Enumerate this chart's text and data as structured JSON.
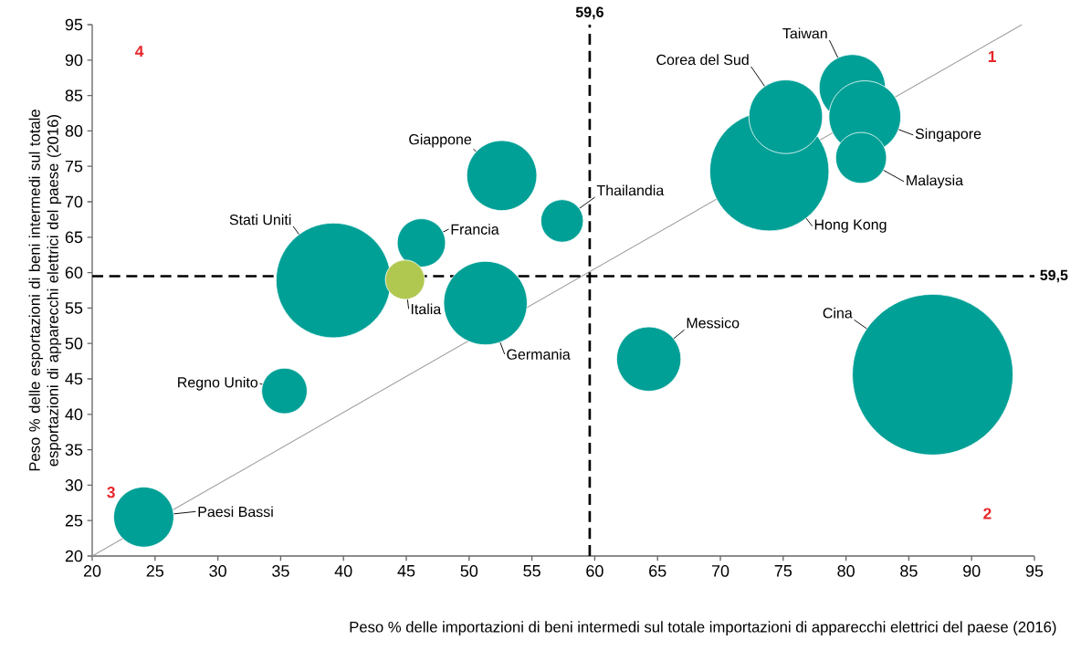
{
  "chart_data": {
    "type": "bubble",
    "xlabel": "Peso % delle importazioni di beni intermedi sul totale importazioni di apparecchi elettrici del paese (2016)",
    "ylabel": "Peso % delle esportazioni di beni intermedi sul totale esportazioni di apparecchi elettrici del paese (2016)",
    "xlim": [
      20,
      95
    ],
    "xticks": [
      20,
      25,
      30,
      35,
      40,
      45,
      50,
      55,
      60,
      65,
      70,
      75,
      80,
      85,
      90,
      95
    ],
    "ylim": [
      20,
      95
    ],
    "yticks": [
      20,
      25,
      30,
      35,
      40,
      45,
      50,
      55,
      60,
      65,
      70,
      75,
      80,
      85,
      90,
      95
    ],
    "series": [
      {
        "type": "bubble",
        "x": [
          86.9,
          73.9,
          39.2,
          51.3,
          80.5,
          75.2,
          81.5,
          81.2,
          52.6,
          64.3,
          24.1,
          35.3,
          46.2,
          57.4,
          44.9
        ],
        "values": [
          45.6,
          74.3,
          58.9,
          55.7,
          86.1,
          82.0,
          82.0,
          76.2,
          73.7,
          47.8,
          25.5,
          43.3,
          64.2,
          67.3,
          59.0
        ],
        "sizes": [
          1,
          0.55,
          0.51,
          0.27,
          0.17,
          0.21,
          0.2,
          0.1,
          0.19,
          0.16,
          0.14,
          0.08,
          0.09,
          0.07,
          0.06
        ],
        "colors": [
          "#00a096",
          "#00a096",
          "#00a096",
          "#00a096",
          "#00a096",
          "#00a096",
          "#00a096",
          "#00a096",
          "#00a096",
          "#00a096",
          "#00a096",
          "#00a096",
          "#00a096",
          "#00a096",
          "#b0c850"
        ]
      },
      {
        "type": "line",
        "x": [
          20,
          94
        ],
        "values": [
          20,
          95
        ],
        "color": "#a0a0a0"
      }
    ],
    "ref_lines": [
      {
        "axis": "x",
        "value": 59.6,
        "label": "59,6",
        "color": "#000000",
        "line_style": "dashed"
      },
      {
        "axis": "y",
        "value": 59.5,
        "label": "59,5",
        "color": "#000000",
        "line_style": "dashed"
      }
    ],
    "annotations": [
      {
        "text": "Cina",
        "x": 86.9,
        "y": 45.6
      },
      {
        "text": "Hong Kong",
        "x": 73.9,
        "y": 74.3
      },
      {
        "text": "Stati Uniti",
        "x": 39.2,
        "y": 58.9
      },
      {
        "text": "Germania",
        "x": 51.3,
        "y": 55.7
      },
      {
        "text": "Taiwan",
        "x": 80.5,
        "y": 86.1
      },
      {
        "text": "Corea del Sud",
        "x": 75.2,
        "y": 82.0
      },
      {
        "text": "Singapore",
        "x": 81.5,
        "y": 82.0
      },
      {
        "text": "Malaysia",
        "x": 81.2,
        "y": 76.2
      },
      {
        "text": "Giappone",
        "x": 52.6,
        "y": 73.7
      },
      {
        "text": "Messico",
        "x": 64.3,
        "y": 47.8
      },
      {
        "text": "Paesi Bassi",
        "x": 24.1,
        "y": 25.5
      },
      {
        "text": "Regno Unito",
        "x": 35.3,
        "y": 43.3
      },
      {
        "text": "Francia",
        "x": 46.2,
        "y": 64.2
      },
      {
        "text": "Thailandia",
        "x": 57.4,
        "y": 67.3
      },
      {
        "text": "Italia",
        "x": 44.9,
        "y": 59.0
      },
      "1",
      "2",
      "3",
      "4"
    ]
  }
}
